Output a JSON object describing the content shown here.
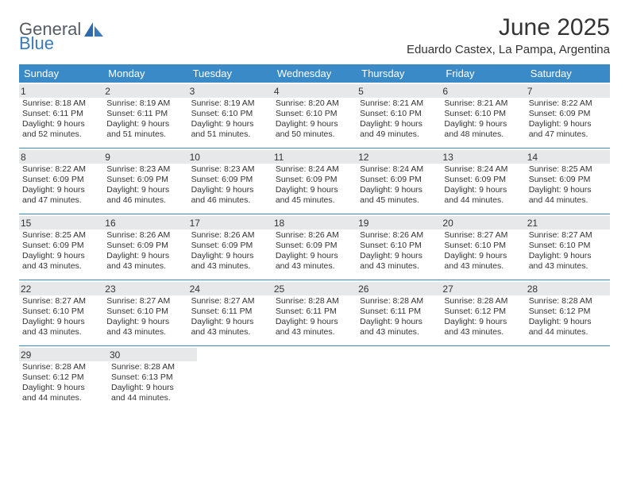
{
  "brand": {
    "word1": "General",
    "word2": "Blue"
  },
  "title": "June 2025",
  "location": "Eduardo Castex, La Pampa, Argentina",
  "colors": {
    "header_bg": "#3a8ac8",
    "header_text": "#ffffff",
    "daynum_bg": "#e7e8e9",
    "border": "#3a8ac8",
    "brand_gray": "#555c63",
    "brand_blue": "#3b7ab8"
  },
  "weekdays": [
    "Sunday",
    "Monday",
    "Tuesday",
    "Wednesday",
    "Thursday",
    "Friday",
    "Saturday"
  ],
  "weeks": [
    [
      {
        "n": "1",
        "sr": "Sunrise: 8:18 AM",
        "ss": "Sunset: 6:11 PM",
        "d1": "Daylight: 9 hours",
        "d2": "and 52 minutes."
      },
      {
        "n": "2",
        "sr": "Sunrise: 8:19 AM",
        "ss": "Sunset: 6:11 PM",
        "d1": "Daylight: 9 hours",
        "d2": "and 51 minutes."
      },
      {
        "n": "3",
        "sr": "Sunrise: 8:19 AM",
        "ss": "Sunset: 6:10 PM",
        "d1": "Daylight: 9 hours",
        "d2": "and 51 minutes."
      },
      {
        "n": "4",
        "sr": "Sunrise: 8:20 AM",
        "ss": "Sunset: 6:10 PM",
        "d1": "Daylight: 9 hours",
        "d2": "and 50 minutes."
      },
      {
        "n": "5",
        "sr": "Sunrise: 8:21 AM",
        "ss": "Sunset: 6:10 PM",
        "d1": "Daylight: 9 hours",
        "d2": "and 49 minutes."
      },
      {
        "n": "6",
        "sr": "Sunrise: 8:21 AM",
        "ss": "Sunset: 6:10 PM",
        "d1": "Daylight: 9 hours",
        "d2": "and 48 minutes."
      },
      {
        "n": "7",
        "sr": "Sunrise: 8:22 AM",
        "ss": "Sunset: 6:09 PM",
        "d1": "Daylight: 9 hours",
        "d2": "and 47 minutes."
      }
    ],
    [
      {
        "n": "8",
        "sr": "Sunrise: 8:22 AM",
        "ss": "Sunset: 6:09 PM",
        "d1": "Daylight: 9 hours",
        "d2": "and 47 minutes."
      },
      {
        "n": "9",
        "sr": "Sunrise: 8:23 AM",
        "ss": "Sunset: 6:09 PM",
        "d1": "Daylight: 9 hours",
        "d2": "and 46 minutes."
      },
      {
        "n": "10",
        "sr": "Sunrise: 8:23 AM",
        "ss": "Sunset: 6:09 PM",
        "d1": "Daylight: 9 hours",
        "d2": "and 46 minutes."
      },
      {
        "n": "11",
        "sr": "Sunrise: 8:24 AM",
        "ss": "Sunset: 6:09 PM",
        "d1": "Daylight: 9 hours",
        "d2": "and 45 minutes."
      },
      {
        "n": "12",
        "sr": "Sunrise: 8:24 AM",
        "ss": "Sunset: 6:09 PM",
        "d1": "Daylight: 9 hours",
        "d2": "and 45 minutes."
      },
      {
        "n": "13",
        "sr": "Sunrise: 8:24 AM",
        "ss": "Sunset: 6:09 PM",
        "d1": "Daylight: 9 hours",
        "d2": "and 44 minutes."
      },
      {
        "n": "14",
        "sr": "Sunrise: 8:25 AM",
        "ss": "Sunset: 6:09 PM",
        "d1": "Daylight: 9 hours",
        "d2": "and 44 minutes."
      }
    ],
    [
      {
        "n": "15",
        "sr": "Sunrise: 8:25 AM",
        "ss": "Sunset: 6:09 PM",
        "d1": "Daylight: 9 hours",
        "d2": "and 43 minutes."
      },
      {
        "n": "16",
        "sr": "Sunrise: 8:26 AM",
        "ss": "Sunset: 6:09 PM",
        "d1": "Daylight: 9 hours",
        "d2": "and 43 minutes."
      },
      {
        "n": "17",
        "sr": "Sunrise: 8:26 AM",
        "ss": "Sunset: 6:09 PM",
        "d1": "Daylight: 9 hours",
        "d2": "and 43 minutes."
      },
      {
        "n": "18",
        "sr": "Sunrise: 8:26 AM",
        "ss": "Sunset: 6:09 PM",
        "d1": "Daylight: 9 hours",
        "d2": "and 43 minutes."
      },
      {
        "n": "19",
        "sr": "Sunrise: 8:26 AM",
        "ss": "Sunset: 6:10 PM",
        "d1": "Daylight: 9 hours",
        "d2": "and 43 minutes."
      },
      {
        "n": "20",
        "sr": "Sunrise: 8:27 AM",
        "ss": "Sunset: 6:10 PM",
        "d1": "Daylight: 9 hours",
        "d2": "and 43 minutes."
      },
      {
        "n": "21",
        "sr": "Sunrise: 8:27 AM",
        "ss": "Sunset: 6:10 PM",
        "d1": "Daylight: 9 hours",
        "d2": "and 43 minutes."
      }
    ],
    [
      {
        "n": "22",
        "sr": "Sunrise: 8:27 AM",
        "ss": "Sunset: 6:10 PM",
        "d1": "Daylight: 9 hours",
        "d2": "and 43 minutes."
      },
      {
        "n": "23",
        "sr": "Sunrise: 8:27 AM",
        "ss": "Sunset: 6:10 PM",
        "d1": "Daylight: 9 hours",
        "d2": "and 43 minutes."
      },
      {
        "n": "24",
        "sr": "Sunrise: 8:27 AM",
        "ss": "Sunset: 6:11 PM",
        "d1": "Daylight: 9 hours",
        "d2": "and 43 minutes."
      },
      {
        "n": "25",
        "sr": "Sunrise: 8:28 AM",
        "ss": "Sunset: 6:11 PM",
        "d1": "Daylight: 9 hours",
        "d2": "and 43 minutes."
      },
      {
        "n": "26",
        "sr": "Sunrise: 8:28 AM",
        "ss": "Sunset: 6:11 PM",
        "d1": "Daylight: 9 hours",
        "d2": "and 43 minutes."
      },
      {
        "n": "27",
        "sr": "Sunrise: 8:28 AM",
        "ss": "Sunset: 6:12 PM",
        "d1": "Daylight: 9 hours",
        "d2": "and 43 minutes."
      },
      {
        "n": "28",
        "sr": "Sunrise: 8:28 AM",
        "ss": "Sunset: 6:12 PM",
        "d1": "Daylight: 9 hours",
        "d2": "and 44 minutes."
      }
    ],
    [
      {
        "n": "29",
        "sr": "Sunrise: 8:28 AM",
        "ss": "Sunset: 6:12 PM",
        "d1": "Daylight: 9 hours",
        "d2": "and 44 minutes."
      },
      {
        "n": "30",
        "sr": "Sunrise: 8:28 AM",
        "ss": "Sunset: 6:13 PM",
        "d1": "Daylight: 9 hours",
        "d2": "and 44 minutes."
      },
      null,
      null,
      null,
      null,
      null
    ]
  ]
}
